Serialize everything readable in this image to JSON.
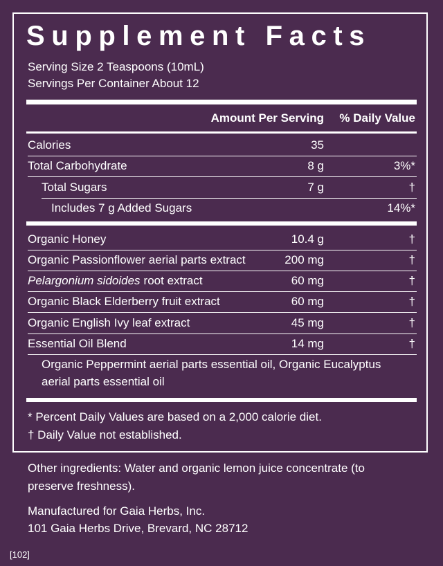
{
  "title": "Supplement Facts",
  "serving": [
    "Serving Size 2 Teaspoons (10mL)",
    "Servings Per Container About 12"
  ],
  "header": [
    "Amount Per Serving",
    "% Daily Value"
  ],
  "rows": [
    {
      "name": "Calories",
      "amount": "35"
    },
    {
      "name": "Total Carbohydrate",
      "amount": "8 g",
      "dv": "3%*"
    },
    {
      "name": "Total Sugars",
      "amount": "7 g",
      "dv": "†"
    },
    {
      "name": "Includes 7 g Added Sugars",
      "dv": "14%*"
    },
    {
      "name": "Organic Honey",
      "amount": "10.4 g",
      "dv": "†"
    },
    {
      "name": "Organic Passionflower aerial parts extract",
      "amount": "200 mg",
      "dv": "†"
    },
    {
      "name_italic": "Pelargonium sidoides",
      "name": "root extract",
      "amount": "60 mg",
      "dv": "†"
    },
    {
      "name": "Organic Black Elderberry fruit extract",
      "amount": "60 mg",
      "dv": "†"
    },
    {
      "name": "Organic English Ivy leaf extract",
      "amount": "45 mg",
      "dv": "†"
    },
    {
      "name": "Essential Oil Blend",
      "amount": "14 mg",
      "dv": "†"
    }
  ],
  "blend_note": [
    "Organic Peppermint aerial parts essential oil, Organic Eucalyptus",
    "aerial parts essential oil"
  ],
  "footnotes": [
    "* Percent Daily Values are based on a 2,000 calorie diet.",
    "† Daily Value not established."
  ],
  "other_ingredients": [
    "Other ingredients: Water and organic lemon juice concentrate (to",
    "preserve freshness)."
  ],
  "manufacturer": [
    "Manufactured for Gaia Herbs, Inc.",
    "101 Gaia Herbs Drive, Brevard, NC 28712"
  ],
  "code": "[102]"
}
